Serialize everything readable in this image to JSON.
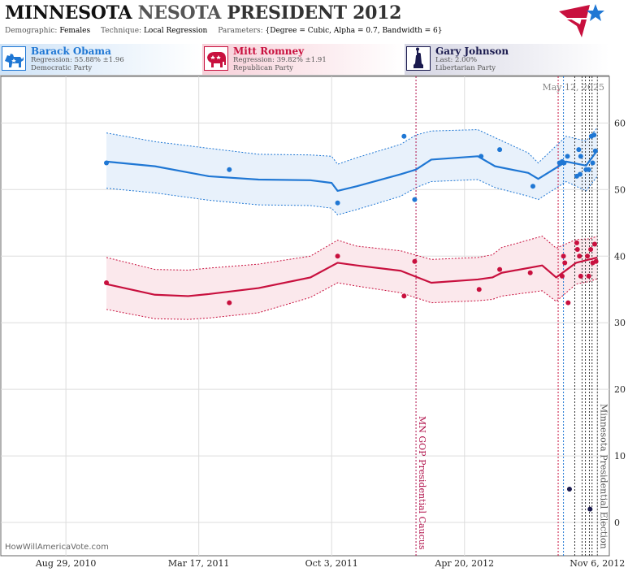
{
  "header": {
    "title_part1": "MINNESOTA",
    "title_part2": "NESOTA",
    "title_part3": "PRESIDENT 2012",
    "demographic_label": "Demographic:",
    "demographic_value": "Females",
    "technique_label": "Technique:",
    "technique_value": "Local Regression",
    "parameters_label": "Parameters:",
    "parameters_value": "{Degree = Cubic, Alpha = 0.7, Bandwidth = 6}"
  },
  "candidates": [
    {
      "name": "Barack Obama",
      "stat": "Regression: 55.88% ±1.96",
      "party": "Democratic Party",
      "color": "#1f77d4",
      "icon": "donkey-icon"
    },
    {
      "name": "Mitt Romney",
      "stat": "Regression: 39.82% ±1.91",
      "party": "Republican Party",
      "color": "#c8103e",
      "icon": "elephant-icon"
    },
    {
      "name": "Gary Johnson",
      "stat": "Last: 2.00%",
      "party": "Libertarian Party",
      "color": "#1a1a4e",
      "icon": "statue-of-liberty-icon"
    }
  ],
  "watermark": "HowWillAmericaVote.com",
  "chart_data": {
    "type": "line",
    "current_date_label": "May 12, 2025",
    "x_tick_labels": [
      "Aug 29, 2010",
      "Mar 17, 2011",
      "Oct 3, 2011",
      "Apr 20, 2012",
      "Nov 6, 2012"
    ],
    "x_tick_dates": [
      "2010-08-29",
      "2011-03-17",
      "2011-10-03",
      "2012-04-20",
      "2012-11-06"
    ],
    "xlim": [
      "2010-05-23",
      "2012-11-24"
    ],
    "ylim": [
      -5,
      67
    ],
    "y_ticks": [
      0,
      10,
      20,
      30,
      40,
      50,
      60
    ],
    "grid": true,
    "annotations": [
      {
        "date": "2012-02-07",
        "label": "MN GOP Presidential Caucus",
        "color": "#b0104a"
      },
      {
        "date": "2012-11-06",
        "label": "Minnesota Presidential Election",
        "color": "#555555"
      }
    ],
    "event_lines": [
      {
        "date": "2012-09-08",
        "color": "#c8103e"
      },
      {
        "date": "2012-09-16",
        "color": "#1f77d4"
      },
      {
        "date": "2012-10-03",
        "color": "#333333"
      },
      {
        "date": "2012-10-14",
        "color": "#333333"
      },
      {
        "date": "2012-10-19",
        "color": "#333333"
      },
      {
        "date": "2012-10-25",
        "color": "#333333"
      },
      {
        "date": "2012-10-29",
        "color": "#333333"
      }
    ],
    "series": [
      {
        "name": "Barack Obama",
        "color": "#1f77d4",
        "trend": {
          "x": [
            "2010-10-29",
            "2011-01-10",
            "2011-04-01",
            "2011-06-15",
            "2011-09-01",
            "2011-10-03",
            "2011-10-12",
            "2011-11-10",
            "2012-01-15",
            "2012-02-07",
            "2012-03-01",
            "2012-05-10",
            "2012-06-05",
            "2012-07-25",
            "2012-08-09",
            "2012-09-20",
            "2012-10-20",
            "2012-11-06"
          ],
          "y": [
            54.2,
            53.5,
            52.0,
            51.5,
            51.4,
            51.0,
            49.8,
            50.5,
            52.3,
            53.0,
            54.5,
            55.0,
            53.5,
            52.5,
            51.6,
            54.2,
            53.6,
            55.9
          ],
          "upper": [
            58.5,
            57.2,
            56.2,
            55.3,
            55.2,
            55.0,
            53.8,
            54.8,
            56.8,
            58.2,
            58.8,
            59.0,
            57.8,
            55.5,
            54.0,
            58.0,
            57.3,
            59.3
          ],
          "lower": [
            50.2,
            49.5,
            48.4,
            47.7,
            47.6,
            47.2,
            46.2,
            47.0,
            49.0,
            50.3,
            51.2,
            51.5,
            50.3,
            49.0,
            48.5,
            51.2,
            49.8,
            52.0
          ]
        },
        "polls": {
          "x": [
            "2010-10-29",
            "2011-05-02",
            "2011-10-12",
            "2012-01-20",
            "2012-02-05",
            "2012-05-15",
            "2012-06-12",
            "2012-08-01",
            "2012-09-10",
            "2012-09-14",
            "2012-09-17",
            "2012-09-22",
            "2012-10-06",
            "2012-10-09",
            "2012-10-11",
            "2012-10-12",
            "2012-10-20",
            "2012-10-24",
            "2012-10-28",
            "2012-10-30",
            "2012-11-01",
            "2012-11-03"
          ],
          "y": [
            54,
            53,
            48,
            58,
            48.5,
            55,
            56,
            50.5,
            54,
            54.2,
            54,
            55,
            52,
            56,
            52.3,
            55,
            53,
            53,
            58,
            54,
            58.2,
            55.8
          ]
        }
      },
      {
        "name": "Mitt Romney",
        "color": "#c8103e",
        "trend": {
          "x": [
            "2010-10-29",
            "2011-01-10",
            "2011-03-01",
            "2011-04-01",
            "2011-06-15",
            "2011-09-01",
            "2011-10-12",
            "2011-11-10",
            "2012-01-15",
            "2012-03-01",
            "2012-05-10",
            "2012-06-01",
            "2012-06-15",
            "2012-08-15",
            "2012-09-05",
            "2012-10-05",
            "2012-10-25",
            "2012-11-06"
          ],
          "y": [
            35.8,
            34.2,
            34.0,
            34.3,
            35.2,
            36.8,
            39.0,
            38.6,
            37.8,
            36.0,
            36.5,
            36.8,
            37.5,
            38.6,
            36.8,
            39.0,
            39.5,
            39.8
          ],
          "upper": [
            39.8,
            38.0,
            37.9,
            38.2,
            38.8,
            40.0,
            42.4,
            41.5,
            40.8,
            39.5,
            39.8,
            40.2,
            41.3,
            43.0,
            41.2,
            42.5,
            42.6,
            43.0
          ],
          "lower": [
            32.0,
            30.6,
            30.5,
            30.7,
            31.5,
            33.8,
            36.0,
            35.5,
            34.5,
            33.0,
            33.3,
            33.5,
            34.0,
            34.8,
            33.2,
            35.8,
            36.2,
            36.6
          ]
        },
        "polls": {
          "x": [
            "2010-10-29",
            "2011-05-02",
            "2011-10-12",
            "2012-01-20",
            "2012-02-05",
            "2012-05-12",
            "2012-06-12",
            "2012-07-28",
            "2012-09-14",
            "2012-09-16",
            "2012-09-18",
            "2012-09-23",
            "2012-10-06",
            "2012-10-07",
            "2012-10-10",
            "2012-10-12",
            "2012-10-22",
            "2012-10-24",
            "2012-10-27",
            "2012-10-30",
            "2012-11-02",
            "2012-11-04"
          ],
          "y": [
            36,
            33,
            40,
            34,
            39.2,
            35,
            38,
            37.5,
            37,
            40,
            39,
            33,
            42,
            41,
            40,
            37,
            40,
            37,
            41,
            39,
            41.8,
            39.2
          ]
        }
      },
      {
        "name": "Gary Johnson",
        "color": "#1a1a4e",
        "trend": null,
        "polls": {
          "x": [
            "2012-09-25",
            "2012-10-26"
          ],
          "y": [
            5,
            2
          ]
        }
      }
    ]
  }
}
